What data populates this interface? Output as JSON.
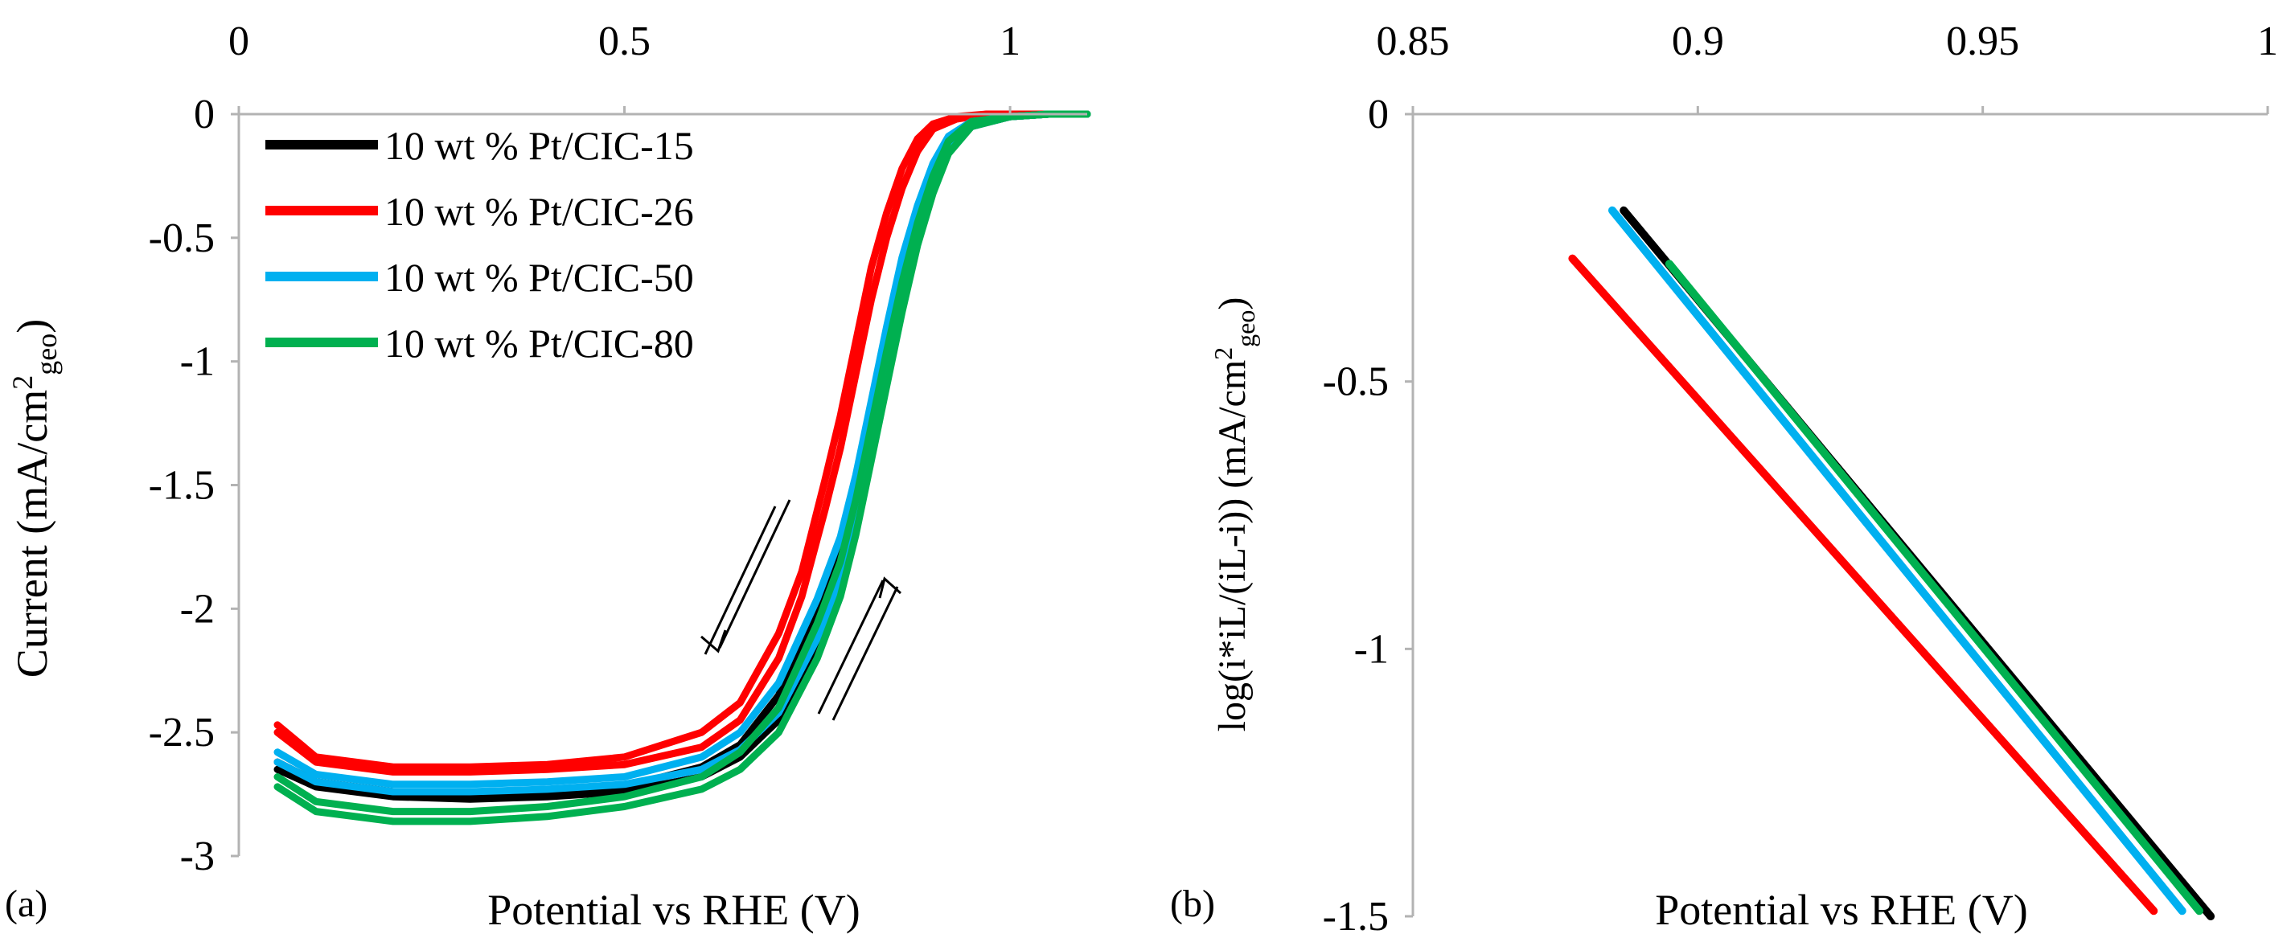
{
  "chart_data": [
    {
      "type": "line",
      "panel_label": "(a)",
      "xlabel": "Potential vs RHE (V)",
      "ylabel": "Current (mA/cm2geo)",
      "ylabel_main": "Current (mA/cm",
      "ylabel_sup": "2",
      "ylabel_sub": "geo",
      "ylabel_end": ")",
      "xlim": [
        0,
        1.1
      ],
      "ylim": [
        -3,
        0
      ],
      "x_ticks": [
        0,
        0.5,
        1
      ],
      "x_tick_labels": [
        "0",
        "0.5",
        "1"
      ],
      "y_ticks": [
        0,
        -0.5,
        -1,
        -1.5,
        -2,
        -2.5,
        -3
      ],
      "y_tick_labels": [
        "0",
        "-0.5",
        "-1",
        "-1.5",
        "-2",
        "-2.5",
        "-3"
      ],
      "x_axis_position": "top",
      "grid": false,
      "legend_position": "top-left",
      "annotations": [
        "arrow: cathodic scan (down)",
        "arrow: anodic scan (up)"
      ],
      "series": [
        {
          "name": "10 wt % Pt/CIC-15",
          "color": "#000000",
          "x": [
            0.05,
            0.1,
            0.2,
            0.3,
            0.4,
            0.5,
            0.6,
            0.65,
            0.7,
            0.75,
            0.78,
            0.8,
            0.82,
            0.84,
            0.86,
            0.88,
            0.9,
            0.92,
            0.95,
            1.0,
            1.05,
            1.1
          ],
          "y": [
            -2.65,
            -2.72,
            -2.76,
            -2.77,
            -2.76,
            -2.74,
            -2.68,
            -2.6,
            -2.45,
            -2.15,
            -1.9,
            -1.65,
            -1.35,
            -1.05,
            -0.75,
            -0.5,
            -0.3,
            -0.15,
            -0.05,
            -0.01,
            0,
            0
          ],
          "y_return": [
            -2.62,
            -2.7,
            -2.74,
            -2.75,
            -2.74,
            -2.72,
            -2.64,
            -2.55,
            -2.35,
            -2.0,
            -1.75,
            -1.5,
            -1.2,
            -0.9,
            -0.62,
            -0.4,
            -0.22,
            -0.1,
            -0.03,
            -0.01,
            0,
            0
          ]
        },
        {
          "name": "10 wt % Pt/CIC-26",
          "color": "#ff0000",
          "x": [
            0.05,
            0.1,
            0.2,
            0.3,
            0.4,
            0.5,
            0.6,
            0.65,
            0.7,
            0.73,
            0.76,
            0.78,
            0.8,
            0.82,
            0.84,
            0.86,
            0.88,
            0.9,
            0.93,
            0.97,
            1.05,
            1.1
          ],
          "y": [
            -2.5,
            -2.62,
            -2.66,
            -2.66,
            -2.65,
            -2.63,
            -2.56,
            -2.45,
            -2.2,
            -1.95,
            -1.6,
            -1.35,
            -1.05,
            -0.75,
            -0.5,
            -0.3,
            -0.15,
            -0.06,
            -0.02,
            0,
            0,
            0
          ],
          "y_return": [
            -2.47,
            -2.6,
            -2.64,
            -2.64,
            -2.63,
            -2.6,
            -2.5,
            -2.38,
            -2.1,
            -1.85,
            -1.48,
            -1.22,
            -0.92,
            -0.62,
            -0.4,
            -0.22,
            -0.1,
            -0.04,
            -0.01,
            0,
            0,
            0
          ]
        },
        {
          "name": "10 wt % Pt/CIC-50",
          "color": "#00b0f0",
          "x": [
            0.05,
            0.1,
            0.2,
            0.3,
            0.4,
            0.5,
            0.6,
            0.65,
            0.7,
            0.75,
            0.78,
            0.8,
            0.82,
            0.84,
            0.86,
            0.88,
            0.9,
            0.92,
            0.95,
            1.0,
            1.05,
            1.1
          ],
          "y": [
            -2.62,
            -2.7,
            -2.74,
            -2.74,
            -2.73,
            -2.71,
            -2.65,
            -2.57,
            -2.42,
            -2.12,
            -1.87,
            -1.62,
            -1.32,
            -1.02,
            -0.72,
            -0.48,
            -0.28,
            -0.14,
            -0.05,
            -0.01,
            0,
            0
          ],
          "y_return": [
            -2.58,
            -2.67,
            -2.71,
            -2.71,
            -2.7,
            -2.68,
            -2.6,
            -2.5,
            -2.3,
            -1.96,
            -1.71,
            -1.46,
            -1.16,
            -0.86,
            -0.58,
            -0.37,
            -0.2,
            -0.09,
            -0.03,
            -0.01,
            0,
            0
          ]
        },
        {
          "name": "10 wt % Pt/CIC-80",
          "color": "#00b050",
          "x": [
            0.05,
            0.1,
            0.2,
            0.3,
            0.4,
            0.5,
            0.6,
            0.65,
            0.7,
            0.75,
            0.78,
            0.8,
            0.82,
            0.84,
            0.86,
            0.88,
            0.9,
            0.92,
            0.95,
            1.0,
            1.05,
            1.1
          ],
          "y": [
            -2.72,
            -2.82,
            -2.86,
            -2.86,
            -2.84,
            -2.8,
            -2.73,
            -2.65,
            -2.5,
            -2.2,
            -1.95,
            -1.7,
            -1.4,
            -1.1,
            -0.8,
            -0.53,
            -0.32,
            -0.16,
            -0.05,
            -0.01,
            0,
            0
          ],
          "y_return": [
            -2.68,
            -2.78,
            -2.82,
            -2.82,
            -2.8,
            -2.76,
            -2.68,
            -2.58,
            -2.4,
            -2.06,
            -1.81,
            -1.56,
            -1.26,
            -0.96,
            -0.68,
            -0.44,
            -0.25,
            -0.11,
            -0.03,
            -0.01,
            0,
            0
          ]
        }
      ]
    },
    {
      "type": "line",
      "panel_label": "(b)",
      "xlabel": "Potential vs RHE (V)",
      "ylabel": "log(i*iL/(iL-i)) (mA/cm2geo)",
      "ylabel_main": "log(i*iL/(iL-i)) (mA/cm",
      "ylabel_sup": "2",
      "ylabel_sub": "geo",
      "ylabel_end": ")",
      "xlim": [
        0.85,
        1
      ],
      "ylim": [
        -1.5,
        0
      ],
      "x_ticks": [
        0.85,
        0.9,
        0.95,
        1
      ],
      "x_tick_labels": [
        "0.85",
        "0.9",
        "0.95",
        "1"
      ],
      "y_ticks": [
        0,
        -0.5,
        -1,
        -1.5
      ],
      "y_tick_labels": [
        "0",
        "-0.5",
        "-1",
        "-1.5"
      ],
      "x_axis_position": "top",
      "grid": false,
      "series": [
        {
          "name": "10 wt % Pt/CIC-15",
          "color": "#000000",
          "x": [
            0.887,
            0.99
          ],
          "y": [
            -0.18,
            -1.5
          ]
        },
        {
          "name": "10 wt % Pt/CIC-26",
          "color": "#ff0000",
          "x": [
            0.878,
            0.98
          ],
          "y": [
            -0.27,
            -1.49
          ]
        },
        {
          "name": "10 wt % Pt/CIC-50",
          "color": "#00b0f0",
          "x": [
            0.885,
            0.985
          ],
          "y": [
            -0.18,
            -1.49
          ]
        },
        {
          "name": "10 wt % Pt/CIC-80",
          "color": "#00b050",
          "x": [
            0.895,
            0.988
          ],
          "y": [
            -0.28,
            -1.49
          ]
        }
      ]
    }
  ]
}
